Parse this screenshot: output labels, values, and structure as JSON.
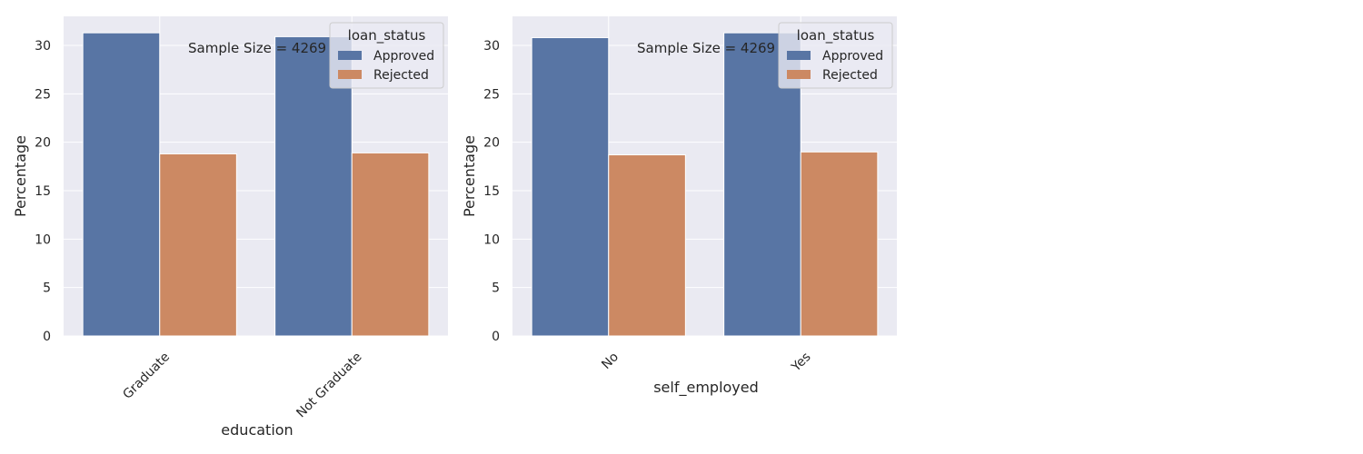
{
  "colors": {
    "Approved": "#5875a4",
    "Rejected": "#cc8963",
    "panel_bg": "#eaeaf2",
    "grid": "#ffffff"
  },
  "chart_data": [
    {
      "type": "bar",
      "categories": [
        "Graduate",
        "Not Graduate"
      ],
      "series": [
        {
          "name": "Approved",
          "values": [
            31.3,
            30.9
          ]
        },
        {
          "name": "Rejected",
          "values": [
            18.8,
            18.9
          ]
        }
      ],
      "xlabel": "education",
      "ylabel": "Percentage",
      "ylim": [
        0,
        33
      ],
      "yticks": [
        0,
        5,
        10,
        15,
        20,
        25,
        30
      ],
      "annotation": "Sample Size = 4269",
      "legend_title": "loan_status",
      "legend_placement": "top-right",
      "grid": true,
      "xtick_rotation": 45
    },
    {
      "type": "bar",
      "categories": [
        "No",
        "Yes"
      ],
      "series": [
        {
          "name": "Approved",
          "values": [
            30.8,
            31.3
          ]
        },
        {
          "name": "Rejected",
          "values": [
            18.7,
            19.0
          ]
        }
      ],
      "xlabel": "self_employed",
      "ylabel": "Percentage",
      "ylim": [
        0,
        33
      ],
      "yticks": [
        0,
        5,
        10,
        15,
        20,
        25,
        30
      ],
      "annotation": "Sample Size = 4269",
      "legend_title": "loan_status",
      "legend_placement": "top-right",
      "grid": true,
      "xtick_rotation": 45
    }
  ]
}
